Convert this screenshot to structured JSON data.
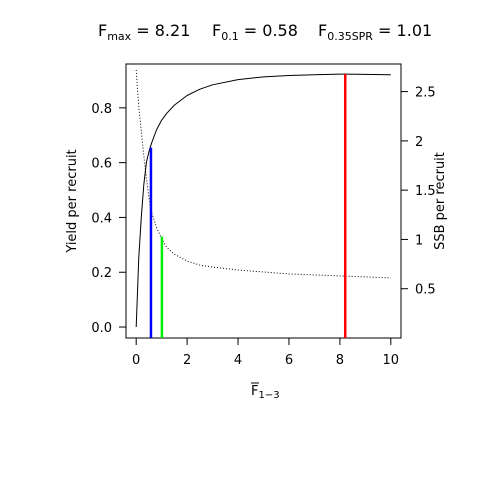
{
  "title": {
    "fmax": {
      "base": "F",
      "sub": "max",
      "value": " = 8.21"
    },
    "f01": {
      "base": "F",
      "sub": "0.1",
      "value": " = 0.58"
    },
    "fspr": {
      "base": "F",
      "sub": "0.35SPR",
      "value": " = 1.01"
    }
  },
  "chart_data": {
    "type": "line",
    "xlabel": {
      "base": "F",
      "sub": "1−3"
    },
    "ylabel_left": "Yield per recruit",
    "ylabel_right": "SSB per recruit",
    "xlim": [
      -0.4,
      10.4
    ],
    "ylim_left": [
      -0.04,
      0.96
    ],
    "ylim_right": [
      0.0,
      2.78
    ],
    "x_ticks": [
      "0",
      "2",
      "4",
      "6",
      "8",
      "10"
    ],
    "y_left_ticks": [
      "0.0",
      "0.2",
      "0.4",
      "0.6",
      "0.8"
    ],
    "y_right_ticks": [
      "0.5",
      "1",
      "1.5",
      "2",
      "2.5"
    ],
    "series": [
      {
        "line_style": "solid",
        "axis": "left",
        "x": [
          0.0,
          0.1,
          0.2,
          0.3,
          0.4,
          0.5,
          0.6,
          0.8,
          1.0,
          1.2,
          1.5,
          2.0,
          2.5,
          3.0,
          4.0,
          5.0,
          6.0,
          7.0,
          8.0,
          8.21,
          9.0,
          10.0
        ],
        "y": [
          0.0,
          0.25,
          0.4,
          0.52,
          0.6,
          0.64,
          0.67,
          0.72,
          0.755,
          0.78,
          0.81,
          0.845,
          0.868,
          0.884,
          0.903,
          0.913,
          0.918,
          0.921,
          0.923,
          0.923,
          0.922,
          0.921
        ]
      },
      {
        "line_style": "dotted",
        "axis": "right",
        "x": [
          0.0,
          0.1,
          0.2,
          0.3,
          0.4,
          0.5,
          0.6,
          0.8,
          1.0,
          1.2,
          1.5,
          2.0,
          2.5,
          3.0,
          4.0,
          5.0,
          6.0,
          7.0,
          8.0,
          9.0,
          10.0
        ],
        "y": [
          2.72,
          2.35,
          2.1,
          1.85,
          1.62,
          1.43,
          1.28,
          1.12,
          1.01,
          0.92,
          0.85,
          0.78,
          0.74,
          0.72,
          0.69,
          0.67,
          0.65,
          0.64,
          0.63,
          0.62,
          0.61
        ]
      }
    ],
    "reference_lines": [
      {
        "color": "#0000ff",
        "x": 0.58,
        "y_top": 0.655,
        "axis": "left"
      },
      {
        "color": "#00ee00",
        "x": 1.01,
        "y_top": 0.33,
        "axis": "left"
      },
      {
        "color": "#ff0000",
        "x": 8.21,
        "y_top": 0.923,
        "axis": "left"
      }
    ]
  }
}
